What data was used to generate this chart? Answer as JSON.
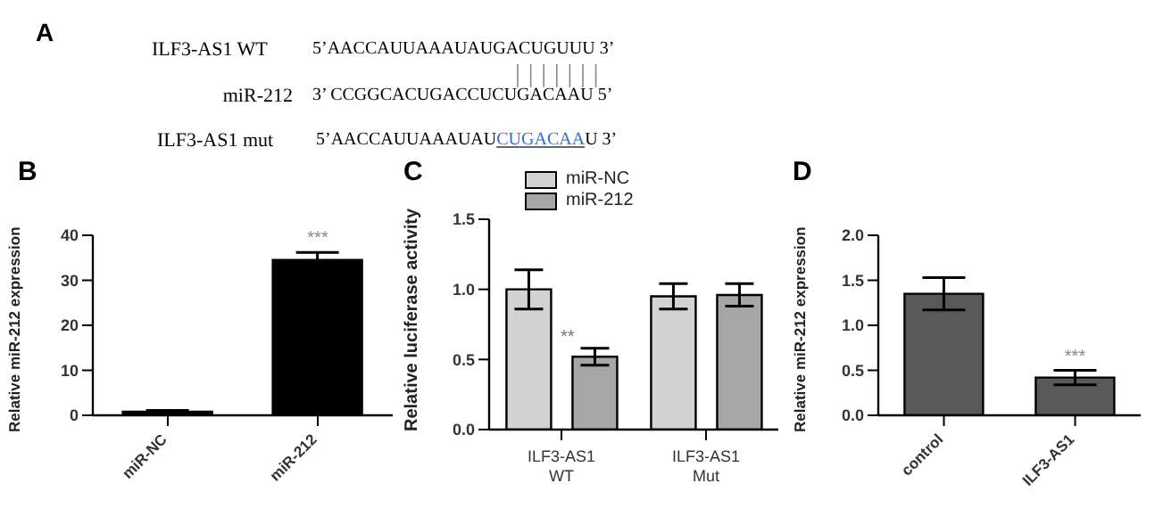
{
  "chart_data": [
    {
      "type": "other",
      "title": "A",
      "annotations": [
        "ILF3-AS1 WT",
        "5’AACCAUUAAAUAUGACUGUUU 3’",
        "miR-212",
        "3’ CCGGCACUGACCUCUGACAAU 5’",
        "ILF3-AS1 mut",
        "5’AACCAUUAAAUAU",
        "CUGACAA",
        "U 3’"
      ]
    },
    {
      "type": "bar",
      "title": "B",
      "ylabel": "Relative miR-212 expression",
      "categories": [
        "miR-NC",
        "miR-212"
      ],
      "series": [
        {
          "color": "#000000",
          "values": [
            0.8,
            34.5
          ],
          "errors": [
            0.3,
            1.7
          ]
        }
      ],
      "ylim": [
        0,
        40
      ],
      "yticks": [
        0,
        10,
        20,
        30,
        40
      ],
      "annotations": [
        {
          "text": "***",
          "x": "miR-212",
          "y": 36.2
        }
      ]
    },
    {
      "type": "bar",
      "title": "C",
      "ylabel": "Relative luciferase activity",
      "categories": [
        "ILF3-AS1\nWT",
        "ILF3-AS1\nMut"
      ],
      "series": [
        {
          "name": "miR-NC",
          "color": "#d3d3d3",
          "values": [
            1.0,
            0.95
          ],
          "errors": [
            0.14,
            0.09
          ]
        },
        {
          "name": "miR-212",
          "color": "#a6a6a6",
          "values": [
            0.52,
            0.96
          ],
          "errors": [
            0.06,
            0.08
          ]
        }
      ],
      "ylim": [
        0,
        1.5
      ],
      "yticks": [
        {
          "value": 0,
          "label": "0.0"
        },
        {
          "value": 0.5,
          "label": "0.5"
        },
        {
          "value": 1,
          "label": "1.0"
        },
        {
          "value": 1.5,
          "label": "1.5"
        }
      ],
      "legend": "top left",
      "annotations": [
        "**"
      ]
    },
    {
      "type": "bar",
      "title": "D",
      "ylabel": "Relative miR-212 expression",
      "categories": [
        "control",
        "ILF3-AS1"
      ],
      "series": [
        {
          "color": "#595959",
          "values": [
            1.35,
            0.42
          ],
          "errors": [
            0.18,
            0.08
          ]
        }
      ],
      "ylim": [
        0,
        2
      ],
      "yticks": [
        {
          "value": 0,
          "label": "0.0"
        },
        {
          "value": 0.5,
          "label": "0.5"
        },
        {
          "value": 1,
          "label": "1.0"
        },
        {
          "value": 1.5,
          "label": "1.5"
        },
        {
          "value": 2,
          "label": "2.0"
        }
      ],
      "annotations": [
        {
          "text": "***",
          "x": "ILF3-AS1",
          "y": 0.5
        }
      ]
    }
  ]
}
